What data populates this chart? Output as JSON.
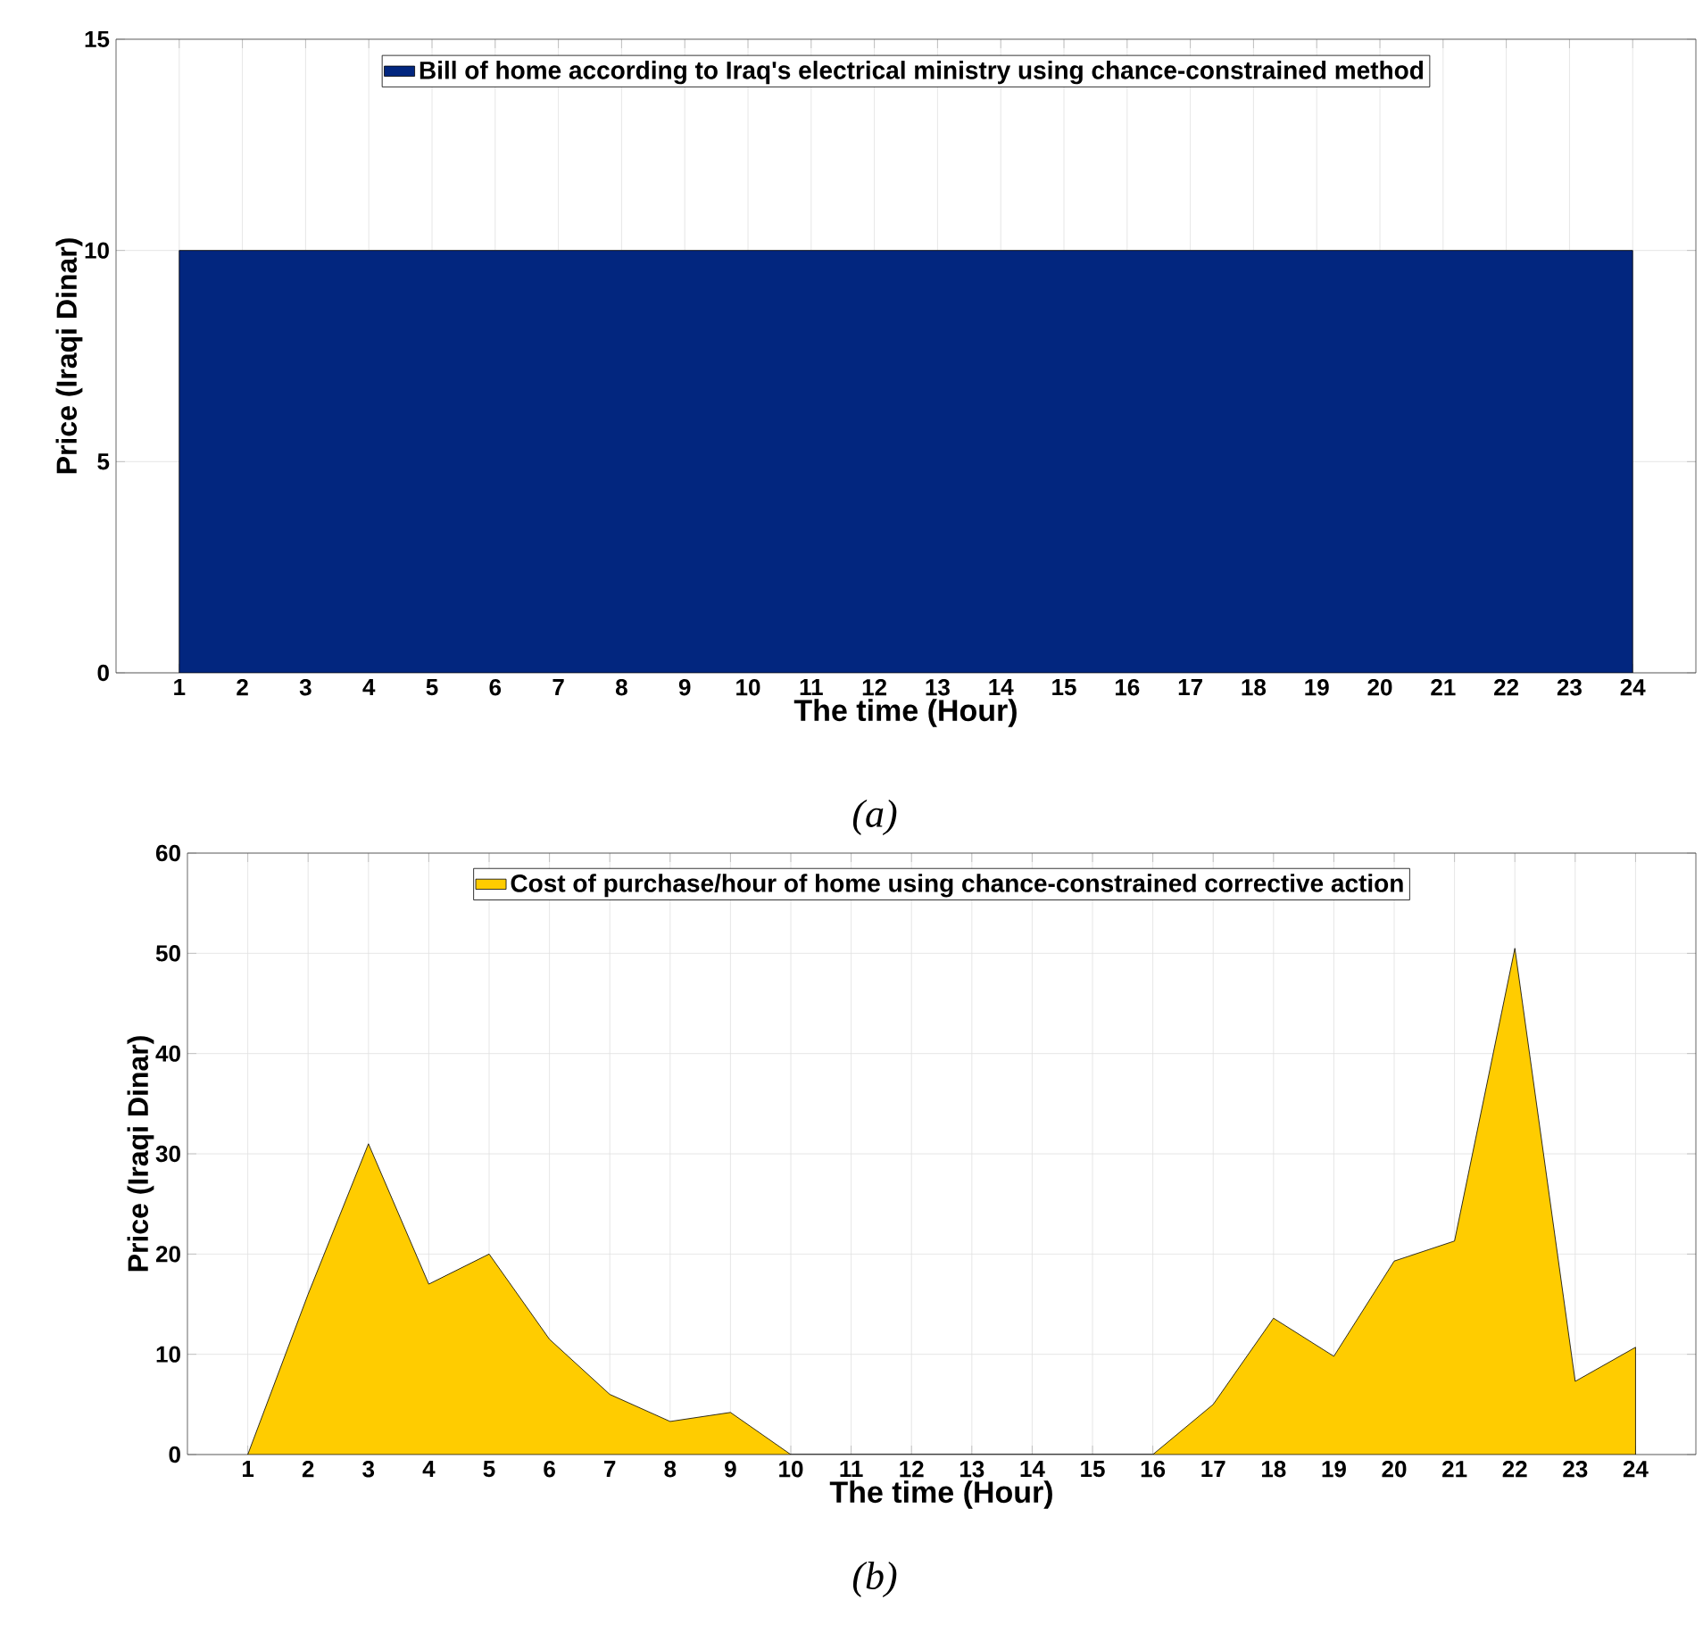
{
  "chart_data": [
    {
      "type": "area",
      "xlabel": "The time (Hour)",
      "ylabel": "Price (Iraqi Dinar)",
      "x": [
        1,
        2,
        3,
        4,
        5,
        6,
        7,
        8,
        9,
        10,
        11,
        12,
        13,
        14,
        15,
        16,
        17,
        18,
        19,
        20,
        21,
        22,
        23,
        24
      ],
      "series": [
        {
          "name": "Bill of home according to Iraq's electrical ministry using chance-constrained method",
          "color": "#02267f",
          "values": [
            10,
            10,
            10,
            10,
            10,
            10,
            10,
            10,
            10,
            10,
            10,
            10,
            10,
            10,
            10,
            10,
            10,
            10,
            10,
            10,
            10,
            10,
            10,
            10
          ]
        }
      ],
      "xlim": [
        0,
        25
      ],
      "xticks": [
        1,
        2,
        3,
        4,
        5,
        6,
        7,
        8,
        9,
        10,
        11,
        12,
        13,
        14,
        15,
        16,
        17,
        18,
        19,
        20,
        21,
        22,
        23,
        24
      ],
      "ylim": [
        0,
        15
      ],
      "yticks": [
        0,
        5,
        10,
        15
      ],
      "grid": true,
      "legend": "top",
      "annotations": [
        "(a)"
      ]
    },
    {
      "type": "area",
      "xlabel": "The time (Hour)",
      "ylabel": "Price (Iraqi Dinar)",
      "x": [
        1,
        2,
        3,
        4,
        5,
        6,
        7,
        8,
        9,
        10,
        11,
        12,
        13,
        14,
        15,
        16,
        17,
        18,
        19,
        20,
        21,
        22,
        23,
        24
      ],
      "series": [
        {
          "name": "Cost of purchase/hour of home using chance-constrained corrective action",
          "color": "#ffcc00",
          "values": [
            0,
            16,
            31,
            17,
            20,
            11.5,
            6,
            3.3,
            4.2,
            0,
            0,
            0,
            0,
            0,
            0,
            0,
            5,
            13.6,
            9.8,
            19.3,
            21.3,
            50.5,
            7.3,
            10.7
          ]
        }
      ],
      "xlim": [
        0,
        25
      ],
      "xticks": [
        1,
        2,
        3,
        4,
        5,
        6,
        7,
        8,
        9,
        10,
        11,
        12,
        13,
        14,
        15,
        16,
        17,
        18,
        19,
        20,
        21,
        22,
        23,
        24
      ],
      "ylim": [
        0,
        60
      ],
      "yticks": [
        0,
        10,
        20,
        30,
        40,
        50,
        60
      ],
      "grid": true,
      "legend": "top",
      "annotations": [
        "(b)"
      ]
    }
  ]
}
